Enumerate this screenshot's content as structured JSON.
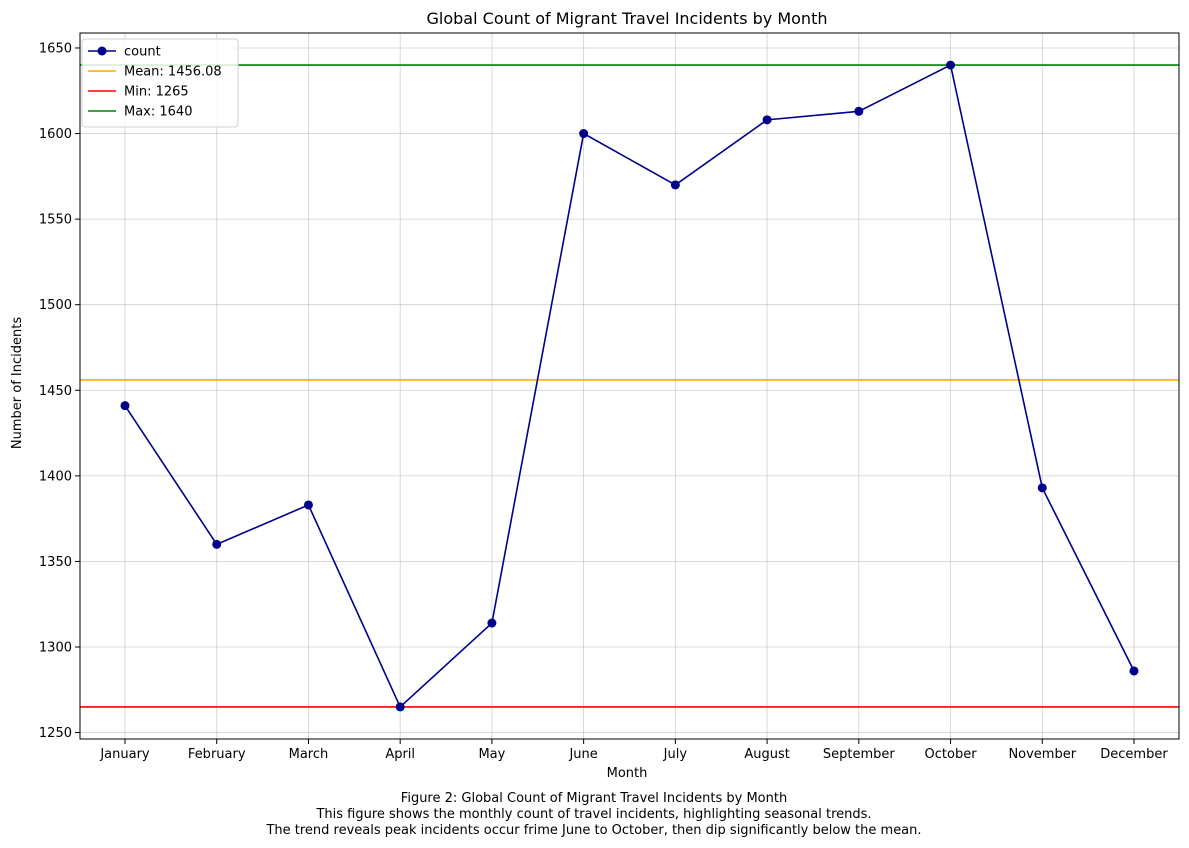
{
  "chart_data": {
    "type": "line",
    "title": "Global Count of Migrant Travel Incidents by Month",
    "xlabel": "Month",
    "ylabel": "Number of Incidents",
    "categories": [
      "January",
      "February",
      "March",
      "April",
      "May",
      "June",
      "July",
      "August",
      "September",
      "October",
      "November",
      "December"
    ],
    "series": [
      {
        "name": "count",
        "values": [
          1441,
          1360,
          1383,
          1265,
          1314,
          1600,
          1570,
          1608,
          1613,
          1640,
          1393,
          1286
        ],
        "color": "#00008b",
        "marker": "circle"
      }
    ],
    "reference_lines": [
      {
        "label": "Mean: 1456.08",
        "value": 1456.08,
        "color": "#ffa500"
      },
      {
        "label": "Min: 1265",
        "value": 1265,
        "color": "#ff0000"
      },
      {
        "label": "Max: 1640",
        "value": 1640,
        "color": "#008000"
      }
    ],
    "ylim": [
      1246.25,
      1658.75
    ],
    "yticks": [
      1250,
      1300,
      1350,
      1400,
      1450,
      1500,
      1550,
      1600,
      1650
    ],
    "grid": true,
    "legend_position": "top-left"
  },
  "caption": {
    "lines": [
      "Figure 2: Global Count of Migrant Travel Incidents by Month",
      "This figure shows the monthly count of travel incidents, highlighting seasonal trends.",
      "The trend reveals peak incidents occur frime June to October, then dip significantly below the mean."
    ]
  }
}
